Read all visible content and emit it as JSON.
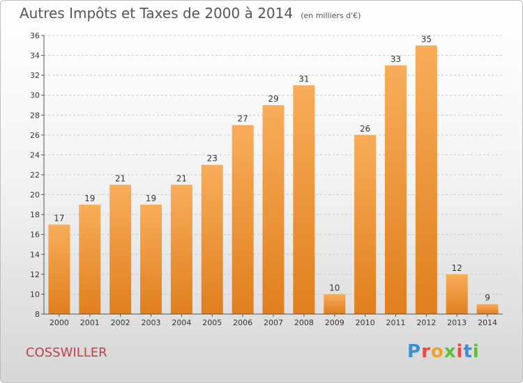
{
  "header": {
    "title": "Autres Impôts et Taxes de 2000 à 2014",
    "subtitle": "(en milliers d'€)"
  },
  "footer": {
    "commune": "COSSWILLER",
    "logo_text": "Proxiti",
    "logo_colors": [
      "#3a8fd6",
      "#e84a3c",
      "#f1a325",
      "#5bbf3a",
      "#e84a3c",
      "#3a8fd6",
      "#5bbf3a"
    ]
  },
  "colors": {
    "bar_light": "#f8ad5a",
    "bar_dark": "#e07f1e",
    "grid": "#c8c8c8",
    "title": "#555555",
    "commune": "#c0404a"
  },
  "chart_data": {
    "type": "bar",
    "title": "Autres Impôts et Taxes de 2000 à 2014",
    "subtitle": "(en milliers d'€)",
    "categories": [
      "2000",
      "2001",
      "2002",
      "2003",
      "2004",
      "2005",
      "2006",
      "2007",
      "2008",
      "2009",
      "2010",
      "2011",
      "2012",
      "2013",
      "2014"
    ],
    "values": [
      17,
      19,
      21,
      19,
      21,
      23,
      27,
      29,
      31,
      10,
      26,
      33,
      35,
      12,
      9
    ],
    "ylim": [
      8,
      36
    ],
    "yticks": [
      8,
      10,
      12,
      14,
      16,
      18,
      20,
      22,
      24,
      26,
      28,
      30,
      32,
      34,
      36
    ],
    "grid": "horizontal dashed",
    "data_labels": true
  }
}
